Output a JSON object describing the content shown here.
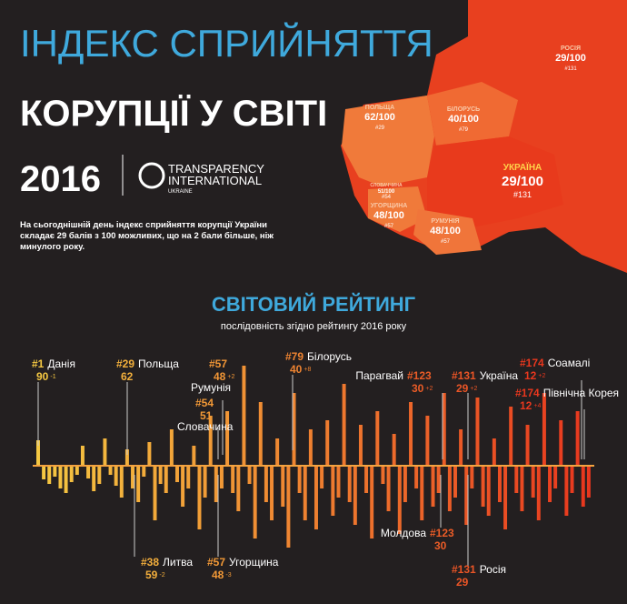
{
  "header": {
    "title_line1": "ІНДЕКС СПРИЙНЯТТЯ",
    "title_line2": "КОРУПЦІЇ У СВІТІ",
    "year": "2016",
    "logo_line1": "TRANSPARENCY",
    "logo_line2": "INTERNATIONAL",
    "logo_line3": "UKRAINE",
    "description": [
      "На сьогоднішній день індекс сприйняття корупції України",
      "складає 29 балів з 100 можливих, що на 2 бали більше, ніж",
      "минулого року."
    ]
  },
  "map": {
    "labels": [
      {
        "name": "РОСІЯ",
        "score": "29/100",
        "rank": "#131"
      },
      {
        "name": "ПОЛЬЩА",
        "score": "62/100",
        "rank": "#29"
      },
      {
        "name": "БІЛОРУСЬ",
        "score": "40/100",
        "rank": "#79"
      },
      {
        "name": "УКРАЇНА",
        "score": "29/100",
        "rank": "#131"
      },
      {
        "name": "УГОРЩИНА",
        "score": "48/100",
        "rank": "#57"
      },
      {
        "name": "РУМУНІЯ",
        "score": "48/100",
        "rank": "#57"
      },
      {
        "name": "СЛОВАЧЧИНА",
        "score": "51/100",
        "rank": "#54"
      }
    ]
  },
  "ranking": {
    "title": "СВІТОВИЙ РЕЙТИНГ",
    "subtitle": "послідовність згідно рейтингу 2016 року",
    "annotations": [
      {
        "rank": "#1",
        "name": "Данія",
        "score": "90",
        "change": "-1"
      },
      {
        "rank": "#29",
        "name": "Польща",
        "score": "62"
      },
      {
        "rank": "#57",
        "name": "Румунія",
        "score": "48",
        "change": "+2"
      },
      {
        "rank": "#54",
        "name": "Словачина",
        "score": "51"
      },
      {
        "rank": "#79",
        "name": "Білорусь",
        "score": "40",
        "change": "+8"
      },
      {
        "rank": "#123",
        "name": "Парагвай",
        "score": "30",
        "change": "+2"
      },
      {
        "rank": "#131",
        "name": "Україна",
        "score": "29",
        "change": "+2"
      },
      {
        "rank": "#174",
        "name": "Соамалі",
        "score": "12",
        "change": "+2"
      },
      {
        "rank": "#174",
        "name": "Північна Корея",
        "score": "12",
        "change": "+4"
      },
      {
        "rank": "#38",
        "name": "Литва",
        "score": "59",
        "change": "-2"
      },
      {
        "rank": "#57",
        "name": "Угорщина",
        "score": "48",
        "change": "-3"
      },
      {
        "rank": "#123",
        "name": "Молдова",
        "score": "30"
      },
      {
        "rank": "#131",
        "name": "Росія",
        "score": "29"
      }
    ],
    "bars": [
      28,
      -15,
      -20,
      -12,
      -25,
      -30,
      -18,
      -10,
      22,
      -14,
      -28,
      -20,
      30,
      -10,
      -22,
      -35,
      18,
      -25,
      -40,
      -12,
      26,
      -60,
      -20,
      -30,
      40,
      -18,
      -45,
      -25,
      22,
      -70,
      -35,
      55,
      -40,
      -25,
      60,
      -30,
      -50,
      110,
      -20,
      -80,
      70,
      -40,
      -60,
      30,
      -45,
      -90,
      80,
      -30,
      -60,
      40,
      -70,
      -25,
      50,
      -55,
      -35,
      90,
      -40,
      -65,
      45,
      -30,
      -80,
      60,
      -20,
      -50,
      35,
      -75,
      -40,
      70,
      -25,
      -60,
      55,
      -45,
      -30,
      80,
      -50,
      -35,
      40,
      -65,
      -25,
      75,
      -45,
      -55,
      30,
      -40,
      -70,
      65,
      -30,
      -50,
      45,
      -35,
      -60,
      80,
      -40,
      -25,
      50,
      -55,
      -30,
      60,
      -45,
      -35
    ]
  }
}
